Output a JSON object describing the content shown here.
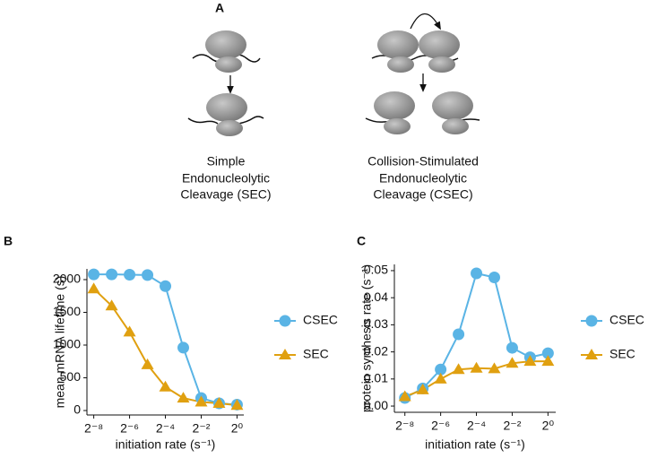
{
  "panel_labels": [
    "A",
    "B",
    "C"
  ],
  "diagram": {
    "sec_label": [
      "Simple",
      "Endonucleolytic",
      "Cleavage (SEC)"
    ],
    "csec_label": [
      "Collision-Stimulated",
      "Endonucleolytic",
      "Cleavage (CSEC)"
    ]
  },
  "chart_data": [
    {
      "type": "line",
      "xscale": "log",
      "legend": "right",
      "xlabel": "initiation rate (s⁻¹)",
      "ylabel": "mean mRNA lifetime (s)",
      "x": [
        0.00390625,
        0.0078125,
        0.015625,
        0.03125,
        0.0625,
        0.125,
        0.25,
        0.5,
        1
      ],
      "series": [
        {
          "name": "CSEC",
          "color": "#5ab4e5",
          "marker": "circle",
          "values": [
            2080,
            2080,
            2075,
            2070,
            1900,
            960,
            190,
            110,
            90
          ]
        },
        {
          "name": "SEC",
          "color": "#e0a010",
          "marker": "triangle",
          "values": [
            1860,
            1600,
            1200,
            700,
            360,
            190,
            130,
            110,
            80
          ]
        }
      ],
      "xlim": [
        0.003,
        1.3
      ],
      "ylim": [
        -68,
        2164
      ],
      "xticks": [
        {
          "value": 0.00390625,
          "label": "2⁻⁸"
        },
        {
          "value": 0.015625,
          "label": "2⁻⁶"
        },
        {
          "value": 0.0625,
          "label": "2⁻⁴"
        },
        {
          "value": 0.25,
          "label": "2⁻²"
        },
        {
          "value": 1,
          "label": "2⁰"
        }
      ],
      "yticks": [
        0,
        500,
        1000,
        1500,
        2000
      ]
    },
    {
      "type": "line",
      "xscale": "log",
      "legend": "right",
      "xlabel": "initiation rate (s⁻¹)",
      "ylabel": "protein synthesis rate (s⁻¹)",
      "x": [
        0.00390625,
        0.0078125,
        0.015625,
        0.03125,
        0.0625,
        0.125,
        0.25,
        0.5,
        1
      ],
      "series": [
        {
          "name": "CSEC",
          "color": "#5ab4e5",
          "marker": "circle",
          "values": [
            0.003,
            0.0065,
            0.0135,
            0.0265,
            0.049,
            0.0475,
            0.0215,
            0.018,
            0.0195
          ]
        },
        {
          "name": "SEC",
          "color": "#e0a010",
          "marker": "triangle",
          "values": [
            0.0035,
            0.006,
            0.01,
            0.0135,
            0.014,
            0.0138,
            0.0158,
            0.0165,
            0.0165
          ]
        }
      ],
      "xlim": [
        0.0026,
        1.35
      ],
      "ylim": [
        -0.0023,
        0.0523
      ],
      "xticks": [
        {
          "value": 0.00390625,
          "label": "2⁻⁸"
        },
        {
          "value": 0.015625,
          "label": "2⁻⁶"
        },
        {
          "value": 0.0625,
          "label": "2⁻⁴"
        },
        {
          "value": 0.25,
          "label": "2⁻²"
        },
        {
          "value": 1,
          "label": "2⁰"
        }
      ],
      "yticks": [
        {
          "value": 0,
          "label": "0.00"
        },
        0.01,
        0.02,
        0.03,
        0.04,
        0.05
      ]
    }
  ]
}
